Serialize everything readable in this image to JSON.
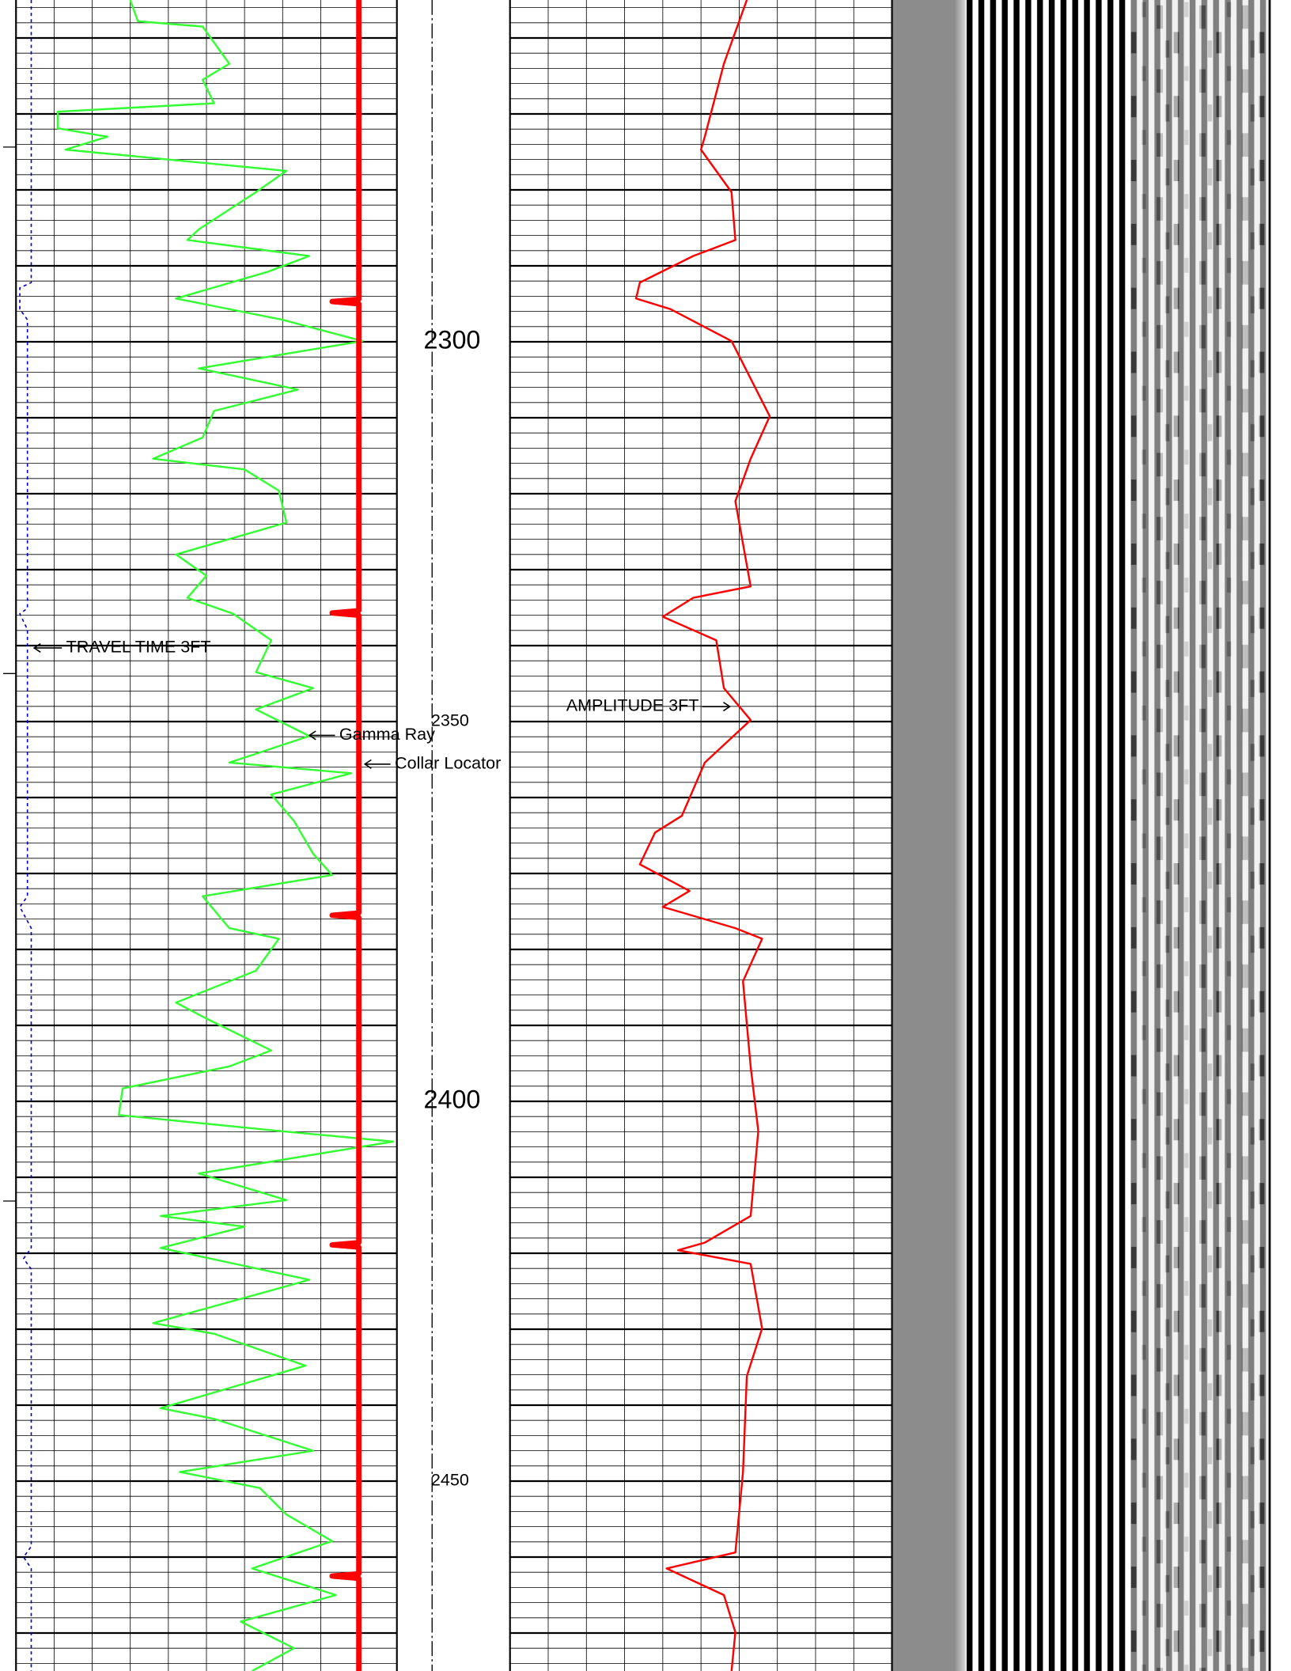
{
  "chart_data": {
    "type": "well-log",
    "ylim": [
      2255,
      2475
    ],
    "yticks": [
      2300,
      2350,
      2400,
      2450
    ],
    "ygrid_major": [
      2260,
      2270,
      2280,
      2290,
      2300,
      2310,
      2320,
      2330,
      2340,
      2350,
      2360,
      2370,
      2380,
      2390,
      2400,
      2410,
      2420,
      2430,
      2440,
      2450,
      2460,
      2470
    ],
    "ygrid_minor": [
      2256,
      2258,
      2262,
      2264,
      2266,
      2268,
      2272,
      2274,
      2276,
      2278,
      2282,
      2284,
      2286,
      2288,
      2292,
      2294,
      2296,
      2298,
      2302,
      2304,
      2306,
      2308,
      2312,
      2314,
      2316,
      2318,
      2322,
      2324,
      2326,
      2328,
      2332,
      2334,
      2336,
      2338,
      2342,
      2344,
      2346,
      2348,
      2352,
      2354,
      2356,
      2358,
      2362,
      2364,
      2366,
      2368,
      2372,
      2374,
      2376,
      2378,
      2382,
      2384,
      2386,
      2388,
      2392,
      2394,
      2396,
      2398,
      2402,
      2404,
      2406,
      2408,
      2412,
      2414,
      2416,
      2418,
      2422,
      2424,
      2426,
      2428,
      2432,
      2434,
      2436,
      2438,
      2442,
      2444,
      2446,
      2448,
      2452,
      2454,
      2456,
      2458,
      2462,
      2464,
      2466,
      2468,
      2472,
      2474
    ],
    "tracks": [
      {
        "xlim": [
          0,
          10
        ],
        "xticks": [
          0,
          1,
          2,
          3,
          4,
          5,
          6,
          7,
          8,
          9,
          10
        ]
      },
      {
        "xlim": [
          0,
          10
        ],
        "xticks": [
          0,
          1,
          2,
          3,
          4,
          5,
          6,
          7,
          8,
          9,
          10
        ]
      }
    ],
    "series": [
      {
        "name": "TRAVEL TIME 3FT",
        "color": "#0000cc",
        "track": 0,
        "dashed": true,
        "depths": [
          2255.0,
          2292.2,
          2292.9,
          2295.7,
          2297.1,
          2335.1,
          2335.8,
          2337.9,
          2373.0,
          2374.4,
          2377.2,
          2419.3,
          2420.7,
          2422.1,
          2458.6,
          2460.0,
          2461.5,
          2475.0
        ],
        "values": [
          0.4,
          0.4,
          0.1,
          0.1,
          0.3,
          0.3,
          0.1,
          0.3,
          0.3,
          0.1,
          0.4,
          0.4,
          0.2,
          0.4,
          0.4,
          0.2,
          0.4,
          0.4
        ]
      },
      {
        "name": "Gamma Ray",
        "color": "#33ff33",
        "track": 0,
        "dashed": false,
        "depths": [
          2255.0,
          2257.8,
          2258.5,
          2263.4,
          2265.5,
          2268.6,
          2269.7,
          2271.9,
          2273.0,
          2274.7,
          2277.5,
          2280.3,
          2285.2,
          2286.6,
          2288.7,
          2290.8,
          2294.3,
          2297.1,
          2299.9,
          2303.5,
          2306.3,
          2309.1,
          2312.6,
          2315.4,
          2316.8,
          2319.6,
          2323.8,
          2328.0,
          2330.8,
          2333.7,
          2335.8,
          2339.3,
          2343.5,
          2345.6,
          2348.4,
          2351.9,
          2355.4,
          2356.8,
          2359.6,
          2363.1,
          2367.4,
          2370.2,
          2373.0,
          2377.2,
          2378.6,
          2382.8,
          2387.0,
          2389.1,
          2393.3,
          2395.4,
          2398.3,
          2401.8,
          2403.9,
          2405.3,
          2409.5,
          2413.0,
          2415.1,
          2416.5,
          2419.3,
          2423.5,
          2429.2,
          2430.6,
          2434.8,
          2440.4,
          2441.8,
          2446.0,
          2448.8,
          2450.9,
          2454.4,
          2457.9,
          2461.5,
          2465.0,
          2468.5,
          2472.0,
          2475.0
        ],
        "values": [
          3.0,
          3.2,
          4.9,
          5.6,
          4.9,
          5.2,
          1.1,
          1.1,
          2.4,
          1.3,
          7.1,
          6.3,
          4.8,
          4.5,
          7.7,
          6.6,
          4.2,
          7.0,
          9.1,
          4.8,
          7.4,
          5.2,
          4.9,
          3.6,
          6.0,
          6.9,
          7.1,
          4.2,
          5.0,
          4.5,
          5.7,
          6.7,
          6.3,
          7.8,
          6.3,
          7.7,
          5.6,
          8.8,
          6.7,
          7.3,
          7.8,
          8.3,
          4.9,
          5.6,
          6.9,
          6.3,
          4.2,
          5.0,
          6.7,
          5.6,
          2.8,
          2.7,
          6.9,
          9.9,
          4.8,
          7.1,
          3.8,
          6.0,
          3.8,
          7.7,
          3.6,
          5.2,
          7.6,
          3.8,
          5.2,
          7.8,
          4.3,
          6.4,
          7.1,
          8.3,
          6.2,
          8.4,
          5.9,
          7.3,
          6.2
        ]
      },
      {
        "name": "Collar Locator",
        "color": "#ff0000",
        "track": 0,
        "dashed": false,
        "depths": [
          2255.0,
          2294.4,
          2294.7,
          2295.0,
          2335.4,
          2335.7,
          2336.0,
          2375.2,
          2375.5,
          2375.8,
          2418.6,
          2418.9,
          2419.2,
          2462.2,
          2462.5,
          2462.8,
          2475.0
        ],
        "values": [
          9.0,
          9.0,
          8.3,
          9.0,
          9.0,
          8.3,
          9.0,
          9.0,
          8.3,
          9.0,
          9.0,
          8.3,
          9.0,
          9.0,
          8.3,
          9.0,
          9.0
        ]
      },
      {
        "name": "AMPLITUDE 3FT",
        "color": "#ff0000",
        "track": 1,
        "dashed": false,
        "depths": [
          2255.0,
          2263.4,
          2273.0,
          2274.7,
          2280.3,
          2286.6,
          2288.7,
          2292.2,
          2294.3,
          2295.7,
          2299.9,
          2309.8,
          2315.4,
          2321.0,
          2332.2,
          2333.7,
          2336.2,
          2339.3,
          2345.6,
          2349.8,
          2355.4,
          2362.4,
          2364.6,
          2368.8,
          2372.3,
          2374.4,
          2377.2,
          2378.6,
          2384.2,
          2395.4,
          2403.9,
          2415.1,
          2418.6,
          2419.6,
          2421.4,
          2429.9,
          2436.2,
          2448.8,
          2459.4,
          2461.5,
          2465.0,
          2469.9,
          2475.0
        ],
        "values": [
          6.2,
          5.6,
          5.1,
          5.0,
          5.8,
          5.9,
          4.8,
          3.4,
          3.3,
          4.2,
          5.8,
          6.8,
          6.3,
          5.9,
          6.3,
          4.8,
          4.0,
          5.4,
          5.6,
          6.3,
          5.1,
          4.5,
          3.8,
          3.4,
          4.7,
          4.0,
          5.9,
          6.6,
          6.1,
          6.3,
          6.5,
          6.3,
          5.1,
          4.4,
          6.3,
          6.6,
          6.2,
          6.1,
          5.9,
          4.1,
          5.6,
          5.9,
          5.8
        ]
      }
    ]
  }
}
